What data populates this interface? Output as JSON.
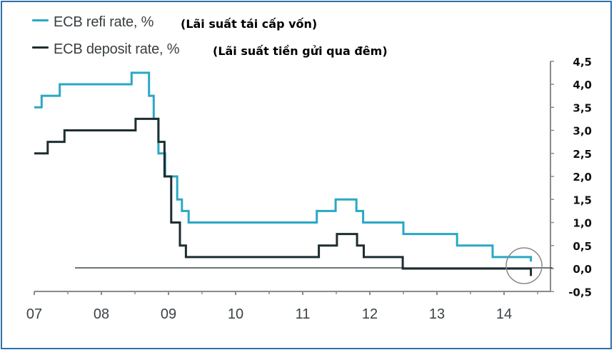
{
  "legend": [
    {
      "label": "ECB refi rate, %",
      "label_vi": "(Lãi suất tái cấp vốn)",
      "color": "#2aa8c4"
    },
    {
      "label": "ECB deposit rate, %",
      "label_vi": "(Lãi suất tiền gửi qua đêm)",
      "color": "#1e2d30"
    }
  ],
  "axes": {
    "x_ticks": [
      "07",
      "08",
      "09",
      "10",
      "11",
      "12",
      "13",
      "14"
    ],
    "y_ticks": [
      "4,5",
      "4,0",
      "3,5",
      "3,0",
      "2,5",
      "2,0",
      "1,5",
      "1,0",
      "0,5",
      "0,0",
      "-0,5"
    ]
  },
  "colors": {
    "refi": "#2aa8c4",
    "deposit": "#1e2d30",
    "axis": "#8a8a8a",
    "frame": "#2f6fa8",
    "zero_line": "#3d4a4c",
    "highlight_circle": "#8a8a8a"
  },
  "chart_data": {
    "type": "line",
    "step": true,
    "title": "",
    "xlabel": "",
    "ylabel": "",
    "x_tick_labels": [
      "07",
      "08",
      "09",
      "10",
      "11",
      "12",
      "13",
      "14"
    ],
    "y_tick_labels": [
      "4,5",
      "4,0",
      "3,5",
      "3,0",
      "2,5",
      "2,0",
      "1,5",
      "1,0",
      "0,5",
      "0,0",
      "-0,5"
    ],
    "xlim": [
      2007.0,
      2014.78
    ],
    "ylim": [
      -0.5,
      4.5
    ],
    "grid": false,
    "y_axis_position": "right",
    "legend_position": "top-left",
    "annotations": [
      "circle highlighting mid-2014 rate cut (deposit rate below zero)"
    ],
    "series": [
      {
        "name": "ECB refi rate, % (Lãi suất tái cấp vốn)",
        "color": "#2aa8c4",
        "x": [
          2007.0,
          2007.11,
          2007.38,
          2008.45,
          2008.71,
          2008.78,
          2008.85,
          2008.95,
          2009.13,
          2009.2,
          2009.3,
          2011.21,
          2011.49,
          2011.8,
          2011.9,
          2012.5,
          2013.3,
          2013.83,
          2014.4
        ],
        "values": [
          3.5,
          3.75,
          4.0,
          4.25,
          3.75,
          3.25,
          2.5,
          2.0,
          1.5,
          1.25,
          1.0,
          1.25,
          1.5,
          1.25,
          1.0,
          0.75,
          0.5,
          0.25,
          0.15
        ]
      },
      {
        "name": "ECB deposit rate, % (Lãi suất tiền gửi qua đêm)",
        "color": "#1e2d30",
        "x": [
          2007.0,
          2007.2,
          2007.45,
          2008.51,
          2008.85,
          2008.94,
          2009.04,
          2009.17,
          2009.26,
          2011.24,
          2011.51,
          2011.81,
          2011.91,
          2012.49,
          2014.4
        ],
        "values": [
          2.5,
          2.75,
          3.0,
          3.25,
          2.75,
          2.0,
          1.0,
          0.5,
          0.25,
          0.5,
          0.75,
          0.5,
          0.25,
          0.0,
          -0.1
        ]
      }
    ],
    "end_x": 2014.4
  }
}
